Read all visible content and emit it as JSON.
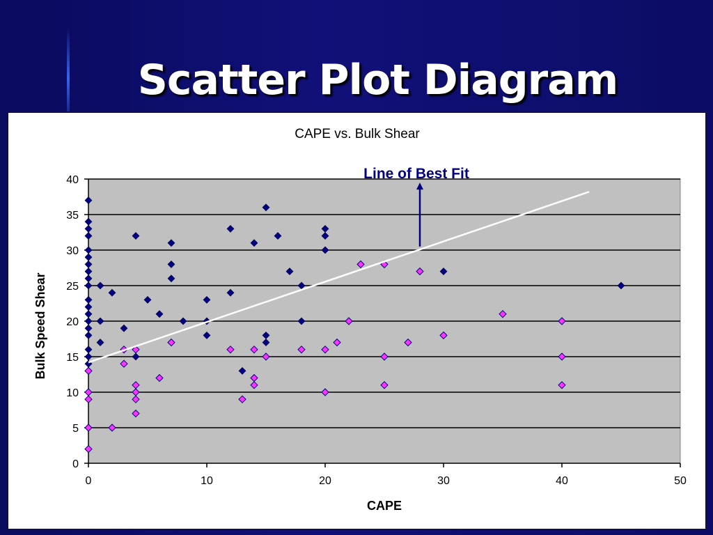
{
  "slide": {
    "title": "Scatter Plot Diagram"
  },
  "colors": {
    "background": "#0c0c6a",
    "plot_area": "#c0c0c0",
    "series_dark": "#000080",
    "series_pink": "#ff33ff",
    "trendline": "#ffffff",
    "annotation": "#000080"
  },
  "annotation": {
    "text": "Line of Best Fit",
    "arrow_x": 28,
    "arrow_y_from": 30.5,
    "arrow_y_to": 39.5
  },
  "chart_data": {
    "type": "scatter",
    "title": "CAPE vs. Bulk Shear",
    "xlabel": "CAPE",
    "ylabel": "Bulk Speed Shear",
    "xlim": [
      0,
      50
    ],
    "ylim": [
      0,
      40
    ],
    "xticks": [
      0,
      10,
      20,
      30,
      40,
      50
    ],
    "yticks": [
      0,
      5,
      10,
      15,
      20,
      25,
      30,
      35,
      40
    ],
    "grid": "horizontal",
    "legend": "none",
    "series": [
      {
        "marker": "diamond",
        "color": "#000080",
        "points": [
          [
            0,
            37
          ],
          [
            0,
            34
          ],
          [
            0,
            33
          ],
          [
            0,
            32
          ],
          [
            0,
            30
          ],
          [
            0,
            29
          ],
          [
            0,
            28
          ],
          [
            0,
            27
          ],
          [
            0,
            26
          ],
          [
            0,
            25
          ],
          [
            0,
            23
          ],
          [
            0,
            22
          ],
          [
            0,
            21
          ],
          [
            0,
            20
          ],
          [
            0,
            19
          ],
          [
            0,
            18
          ],
          [
            0,
            16
          ],
          [
            0,
            15
          ],
          [
            0,
            14
          ],
          [
            1,
            25
          ],
          [
            1,
            20
          ],
          [
            1,
            17
          ],
          [
            2,
            24
          ],
          [
            3,
            19
          ],
          [
            4,
            32
          ],
          [
            4,
            15
          ],
          [
            5,
            23
          ],
          [
            6,
            21
          ],
          [
            7,
            31
          ],
          [
            7,
            28
          ],
          [
            7,
            26
          ],
          [
            8,
            20
          ],
          [
            10,
            23
          ],
          [
            10,
            20
          ],
          [
            10,
            18
          ],
          [
            12,
            33
          ],
          [
            12,
            24
          ],
          [
            13,
            13
          ],
          [
            14,
            31
          ],
          [
            15,
            36
          ],
          [
            15,
            18
          ],
          [
            15,
            17
          ],
          [
            16,
            32
          ],
          [
            17,
            27
          ],
          [
            18,
            25
          ],
          [
            18,
            20
          ],
          [
            20,
            33
          ],
          [
            20,
            32
          ],
          [
            20,
            30
          ],
          [
            30,
            27
          ],
          [
            45,
            25
          ]
        ]
      },
      {
        "marker": "diamond",
        "color": "#ff33ff",
        "points": [
          [
            0,
            13
          ],
          [
            0,
            10
          ],
          [
            0,
            9
          ],
          [
            0,
            5
          ],
          [
            0,
            2
          ],
          [
            2,
            5
          ],
          [
            3,
            16
          ],
          [
            3,
            14
          ],
          [
            4,
            16
          ],
          [
            4,
            11
          ],
          [
            4,
            10
          ],
          [
            4,
            9
          ],
          [
            4,
            7
          ],
          [
            6,
            12
          ],
          [
            7,
            17
          ],
          [
            12,
            16
          ],
          [
            13,
            9
          ],
          [
            14,
            16
          ],
          [
            14,
            12
          ],
          [
            14,
            11
          ],
          [
            15,
            15
          ],
          [
            18,
            16
          ],
          [
            20,
            16
          ],
          [
            20,
            10
          ],
          [
            21,
            17
          ],
          [
            22,
            20
          ],
          [
            23,
            28
          ],
          [
            25,
            28
          ],
          [
            25,
            15
          ],
          [
            25,
            11
          ],
          [
            27,
            17
          ],
          [
            28,
            27
          ],
          [
            30,
            18
          ],
          [
            35,
            21
          ],
          [
            40,
            20
          ],
          [
            40,
            15
          ],
          [
            40,
            11
          ]
        ]
      }
    ],
    "trendline": {
      "type": "linear",
      "x0": 0,
      "y0": 14.2,
      "x1": 42.3,
      "y1": 38.2
    }
  }
}
